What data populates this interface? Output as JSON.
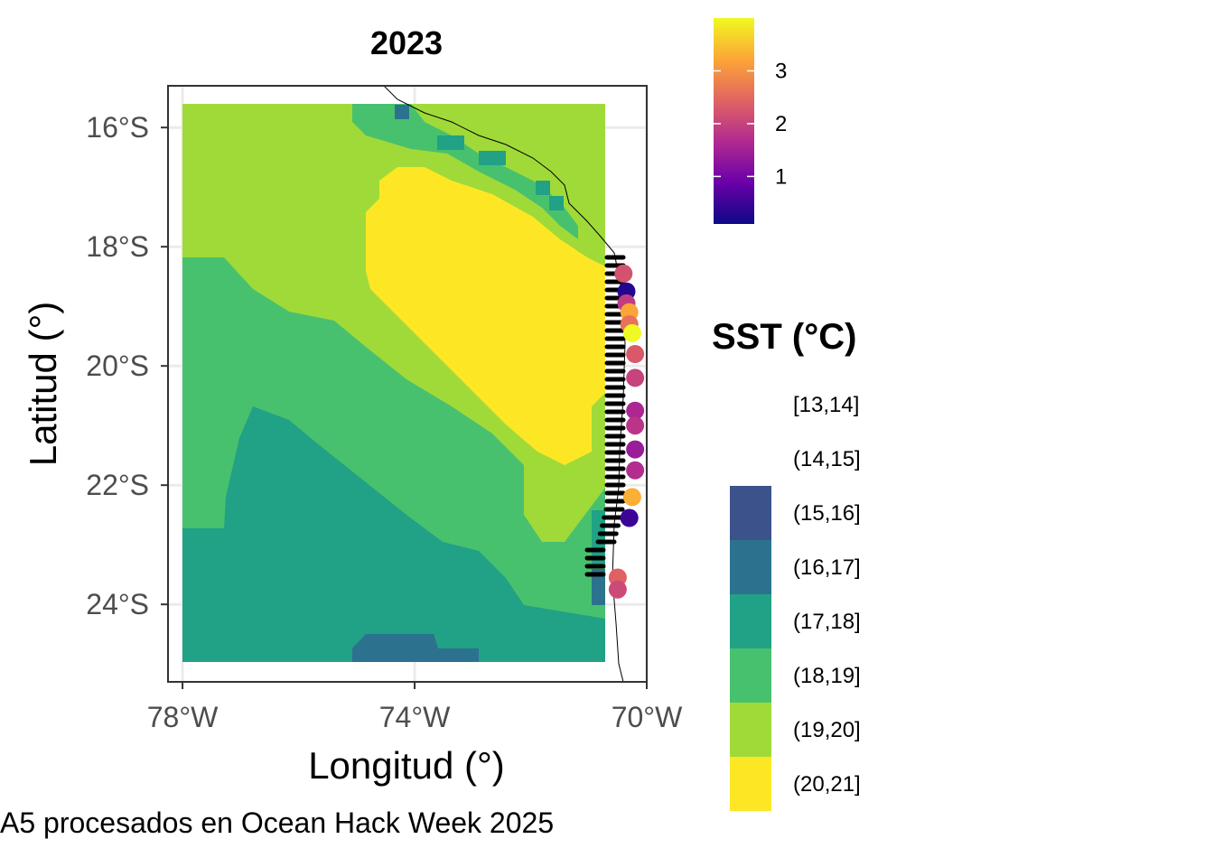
{
  "map": {
    "title": "2023",
    "x_axis": {
      "label": "Longitud (°)",
      "ticks": [
        "78°W",
        "74°W",
        "70°W"
      ],
      "tick_values": [
        -78,
        -74,
        -70
      ],
      "range": [
        -78.25,
        -70.0
      ]
    },
    "y_axis": {
      "label": "Latitud (°)",
      "ticks": [
        "16°S",
        "18°S",
        "20°S",
        "22°S",
        "24°S"
      ],
      "tick_values": [
        -16,
        -18,
        -20,
        -22,
        -24
      ],
      "range": [
        -25.3,
        -15.3
      ]
    },
    "caption": "A5 procesados en Ocean Hack Week 2025",
    "grid": true
  },
  "color_legend": {
    "title": "",
    "ticks": [
      "1",
      "2",
      "3"
    ],
    "tick_values": [
      1,
      2,
      3
    ],
    "range": [
      0.1,
      4.0
    ],
    "palette": [
      "#0d0887",
      "#6a00a8",
      "#b12a90",
      "#e16462",
      "#fca636",
      "#f0f921"
    ]
  },
  "sst_legend": {
    "title": "SST (°C)",
    "classes": [
      {
        "label": "[13,14]",
        "color": ""
      },
      {
        "label": "(14,15]",
        "color": ""
      },
      {
        "label": "(15,16]",
        "color": "#3b528b"
      },
      {
        "label": "(16,17]",
        "color": "#2c728e"
      },
      {
        "label": "(17,18]",
        "color": "#21a185"
      },
      {
        "label": "(18,19]",
        "color": "#48c16e"
      },
      {
        "label": "(19,20]",
        "color": "#a0da39"
      },
      {
        "label": "(20,21]",
        "color": "#fde725"
      }
    ]
  },
  "chart_data": {
    "type": "heatmap",
    "points": [
      {
        "lon": -70.4,
        "lat": -18.45,
        "value": 2.2
      },
      {
        "lon": -70.35,
        "lat": -18.75,
        "value": 0.3
      },
      {
        "lon": -70.35,
        "lat": -18.95,
        "value": 1.9
      },
      {
        "lon": -70.3,
        "lat": -19.1,
        "value": 3.2
      },
      {
        "lon": -70.3,
        "lat": -19.3,
        "value": 2.6
      },
      {
        "lon": -70.25,
        "lat": -19.45,
        "value": 4.0
      },
      {
        "lon": -70.2,
        "lat": -19.8,
        "value": 2.3
      },
      {
        "lon": -70.2,
        "lat": -20.2,
        "value": 2.0
      },
      {
        "lon": -70.2,
        "lat": -20.75,
        "value": 1.6
      },
      {
        "lon": -70.2,
        "lat": -21.0,
        "value": 1.8
      },
      {
        "lon": -70.2,
        "lat": -21.4,
        "value": 1.4
      },
      {
        "lon": -70.2,
        "lat": -21.75,
        "value": 1.7
      },
      {
        "lon": -70.25,
        "lat": -22.2,
        "value": 3.3
      },
      {
        "lon": -70.3,
        "lat": -22.55,
        "value": 0.5
      },
      {
        "lon": -70.5,
        "lat": -23.55,
        "value": 2.4
      },
      {
        "lon": -70.5,
        "lat": -23.75,
        "value": 2.1
      }
    ]
  }
}
